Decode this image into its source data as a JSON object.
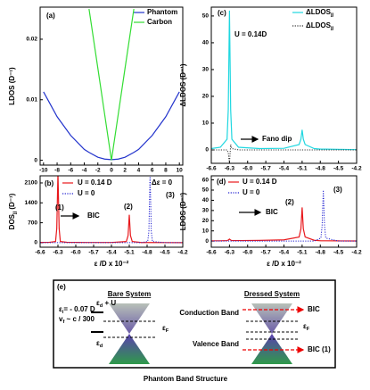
{
  "chart_data": [
    {
      "type": "line",
      "label": "(a)",
      "ylabel": "LDOS (D⁻¹)",
      "x": [
        -10,
        -8,
        -6,
        -4,
        -3.3,
        -2,
        -1,
        0,
        1,
        2,
        3.3,
        4,
        6,
        8,
        10
      ],
      "series": [
        {
          "name": "Phantom",
          "color": "#2233cc",
          "style": "solid",
          "values": [
            0.0113,
            0.0072,
            0.0041,
            0.0018,
            0.0013,
            0.0005,
            0.0002,
            0.0001,
            0.0002,
            0.0005,
            0.0013,
            0.0018,
            0.0041,
            0.0072,
            0.0113
          ]
        },
        {
          "name": "Carbon",
          "color": "#33dd33",
          "style": "solid",
          "values": [
            null,
            null,
            null,
            null,
            0.025,
            0.0152,
            0.0076,
            0,
            0.0076,
            0.0152,
            0.025,
            null,
            null,
            null,
            null
          ]
        }
      ],
      "xlim": [
        -10.5,
        10.5
      ],
      "ylim": [
        -0.0008,
        0.0253
      ],
      "xticks": [
        -10,
        -8,
        -6,
        -4,
        -2,
        0,
        2,
        4,
        6,
        8,
        10
      ],
      "yticks": [
        0,
        0.01,
        0.02
      ],
      "annotations": []
    },
    {
      "type": "line",
      "label": "(b)",
      "ylabel": [
        "DOS",
        "jj",
        " (D⁻¹)"
      ],
      "xlabel": "ε /D x 10⁻²",
      "x": [
        -6.6,
        -6.45,
        -6.34,
        -6.32,
        -6.3,
        -6.28,
        -6.26,
        -6.15,
        -5.8,
        -5.4,
        -5.15,
        -5.12,
        -5.1,
        -5.08,
        -5.05,
        -4.9,
        -4.79,
        -4.77,
        -4.75,
        -4.73,
        -4.71,
        -4.5,
        -4.2
      ],
      "series": [
        {
          "name": "U = 0.14 D",
          "color": "#e8181c",
          "style": "solid",
          "values": [
            8,
            10,
            40,
            500,
            2450,
            500,
            40,
            12,
            6,
            6,
            40,
            250,
            980,
            250,
            40,
            5,
            4,
            4,
            4,
            4,
            4,
            3,
            2
          ]
        },
        {
          "name": "U = 0",
          "color": "#1f1fd0",
          "style": "dotted",
          "values": [
            0,
            0,
            0,
            0,
            0,
            0,
            0,
            0,
            0,
            0,
            0,
            0,
            0,
            0,
            0,
            0,
            40,
            400,
            2450,
            400,
            40,
            0,
            0
          ]
        }
      ],
      "xlim": [
        -6.6,
        -4.2
      ],
      "ylim": [
        -160,
        2350
      ],
      "xticks": [
        -6.6,
        -6.3,
        {
          "value": -6,
          "label": "-6.0"
        },
        -5.7,
        -5.4,
        -5.1,
        -4.8,
        -4.5,
        -4.2
      ],
      "yticks": [
        0,
        700,
        1400,
        2100
      ],
      "annotations": [
        {
          "text": "Δε = 0",
          "color": "#000"
        },
        {
          "text": "(1)",
          "color": "#e8181c"
        },
        {
          "text": "(2)",
          "color": "#e8181c"
        },
        {
          "text": "(3)",
          "color": "#1f1fd0"
        },
        {
          "text": "BIC",
          "color": "#000"
        }
      ]
    },
    {
      "type": "line",
      "label": "(c)",
      "ylabel": "ΔLDOS (D⁻¹)",
      "x": [
        -6.6,
        -6.45,
        -6.34,
        -6.32,
        -6.3,
        -6.28,
        -6.26,
        -6.15,
        -5.8,
        -5.4,
        -5.15,
        -5.12,
        -5.1,
        -5.08,
        -5.05,
        -4.9,
        -4.79,
        -4.77,
        -4.75,
        -4.73,
        -4.71,
        -4.5,
        -4.2
      ],
      "series": [
        {
          "name": [
            "ΔLDOS",
            "jj"
          ],
          "color": "#1fd7e0",
          "style": "solid",
          "values": [
            0.5,
            1,
            4,
            15,
            52,
            15,
            4,
            1,
            0.5,
            0.6,
            2,
            4,
            7.5,
            4,
            2,
            0.5,
            0.3,
            0.3,
            0.3,
            0.3,
            0.3,
            0.2,
            0.1
          ]
        },
        {
          "name": [
            "ΔLDOS",
            "jj"
          ],
          "color": "#333333",
          "style": "dotted",
          "values": [
            0,
            0,
            0,
            -1,
            -5,
            2,
            0.5,
            0,
            0,
            0,
            0,
            0,
            0,
            0,
            0,
            0,
            0,
            0,
            0,
            0,
            0,
            0,
            0
          ]
        }
      ],
      "xlim": [
        -6.6,
        -4.2
      ],
      "ylim": [
        -5,
        53.3
      ],
      "xticks": [
        -6.6,
        -6.3,
        {
          "value": -6,
          "label": "-6.0"
        },
        -5.7,
        -5.4,
        -5.1,
        -4.8,
        -4.5,
        -4.2
      ],
      "yticks": [
        0,
        10,
        20,
        30,
        40,
        50
      ],
      "annotations": [
        {
          "text": "U = 0.14D",
          "color": "#000"
        },
        {
          "text": "Fano dip",
          "color": "#000"
        }
      ]
    },
    {
      "type": "line",
      "label": "(d)",
      "ylabel": "LDOS (D⁻¹)",
      "xlabel": "ε /D x 10⁻²",
      "x": [
        -6.6,
        -6.45,
        -6.34,
        -6.32,
        -6.3,
        -6.28,
        -6.26,
        -6.15,
        -5.8,
        -5.4,
        -5.15,
        -5.12,
        -5.1,
        -5.08,
        -5.05,
        -4.9,
        -4.79,
        -4.77,
        -4.75,
        -4.73,
        -4.71,
        -4.5,
        -4.2
      ],
      "series": [
        {
          "name": "U = 0.14 D",
          "color": "#e8181c",
          "style": "solid",
          "values": [
            0.3,
            0.3,
            0.5,
            1,
            2,
            1,
            0.5,
            0.5,
            0.7,
            1.2,
            4,
            12,
            33,
            12,
            4,
            0.8,
            0.3,
            0.3,
            0.3,
            0.3,
            0.3,
            0.2,
            0.1
          ]
        },
        {
          "name": "U = 0",
          "color": "#1f1fd0",
          "style": "dotted",
          "values": [
            0,
            0,
            0,
            0,
            0,
            0,
            0,
            0,
            0,
            0,
            0,
            0,
            0,
            0,
            0,
            0,
            3,
            15,
            50,
            15,
            3,
            0,
            0
          ]
        }
      ],
      "xlim": [
        -6.6,
        -4.2
      ],
      "ylim": [
        -6,
        64
      ],
      "xticks": [
        -6.6,
        -6.3,
        {
          "value": -6,
          "label": "-6.0"
        },
        -5.7,
        -5.4,
        -5.1,
        -4.8,
        -4.5,
        -4.2
      ],
      "yticks": [
        0,
        10,
        20,
        30,
        40,
        50,
        60
      ],
      "annotations": [
        {
          "text": "(2)",
          "color": "#e8181c"
        },
        {
          "text": "(3)",
          "color": "#1f1fd0"
        },
        {
          "text": "BIC",
          "color": "#000"
        }
      ]
    }
  ],
  "diagram": {
    "label": "(e)",
    "bare_title": "Bare System",
    "dressed_title": "Dressed System",
    "ei": [
      "ε",
      "i",
      "= - 0.07 D"
    ],
    "vf": [
      "v",
      "f",
      " ~ c / 300"
    ],
    "ed_u": [
      "ε",
      "d",
      " + U"
    ],
    "ed": [
      "ε",
      "d"
    ],
    "ef_bare": [
      "ε",
      "F"
    ],
    "ef_dressed": [
      "ε",
      "F"
    ],
    "conduction": "Conduction Band",
    "valence": "Valence Band",
    "bic": "BIC",
    "bic1": "BIC (1)",
    "caption": "Phantom Band Structure"
  }
}
